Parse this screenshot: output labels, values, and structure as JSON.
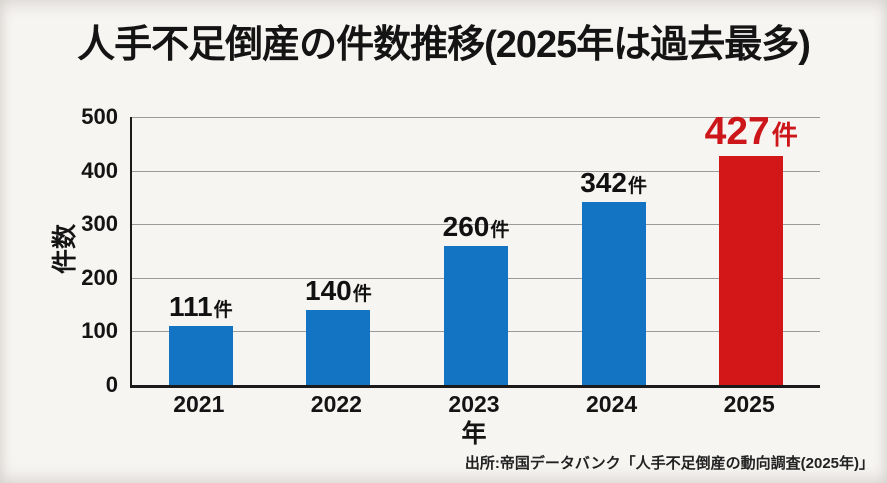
{
  "page": {
    "background": "#f7f5f2"
  },
  "source": "出所:帝国データバンク「人手不足倒産の動向調査(2025年)」",
  "colors": {
    "bar_blue": "#1474c4",
    "bar_red": "#d31718",
    "highlight_text_red": "#cc161a",
    "grid": "#9a9a9a",
    "axis": "#1a1a1a",
    "text": "#141414"
  },
  "chart_data": {
    "type": "bar",
    "title": "人手不足倒産の件数推移(2025年は過去最多)",
    "categories": [
      "2021",
      "2022",
      "2023",
      "2024",
      "2025"
    ],
    "values": [
      111,
      140,
      260,
      342,
      427
    ],
    "unit": "件",
    "value_labels": [
      "111件",
      "140件",
      "260件",
      "342件",
      "427件"
    ],
    "xlabel": "年",
    "ylabel": "件数",
    "ylim": [
      0,
      500
    ],
    "yticks": [
      0,
      100,
      200,
      300,
      400,
      500
    ],
    "grid": true,
    "legend": false,
    "bar_colors": [
      "#1474c4",
      "#1474c4",
      "#1474c4",
      "#1474c4",
      "#d31718"
    ],
    "value_label_colors": [
      "#111111",
      "#111111",
      "#111111",
      "#111111",
      "#cc161a"
    ],
    "highlight_index": 4
  }
}
